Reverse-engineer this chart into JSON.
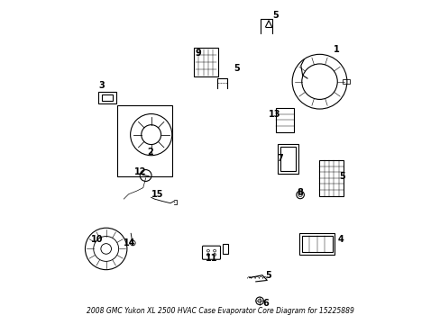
{
  "title": "2008 GMC Yukon XL 2500",
  "subtitle": "HVAC Case Evaporator Core",
  "part_number": "15225889",
  "background_color": "#ffffff",
  "line_color": "#000000",
  "figsize": [
    4.89,
    3.6
  ],
  "dpi": 100
}
